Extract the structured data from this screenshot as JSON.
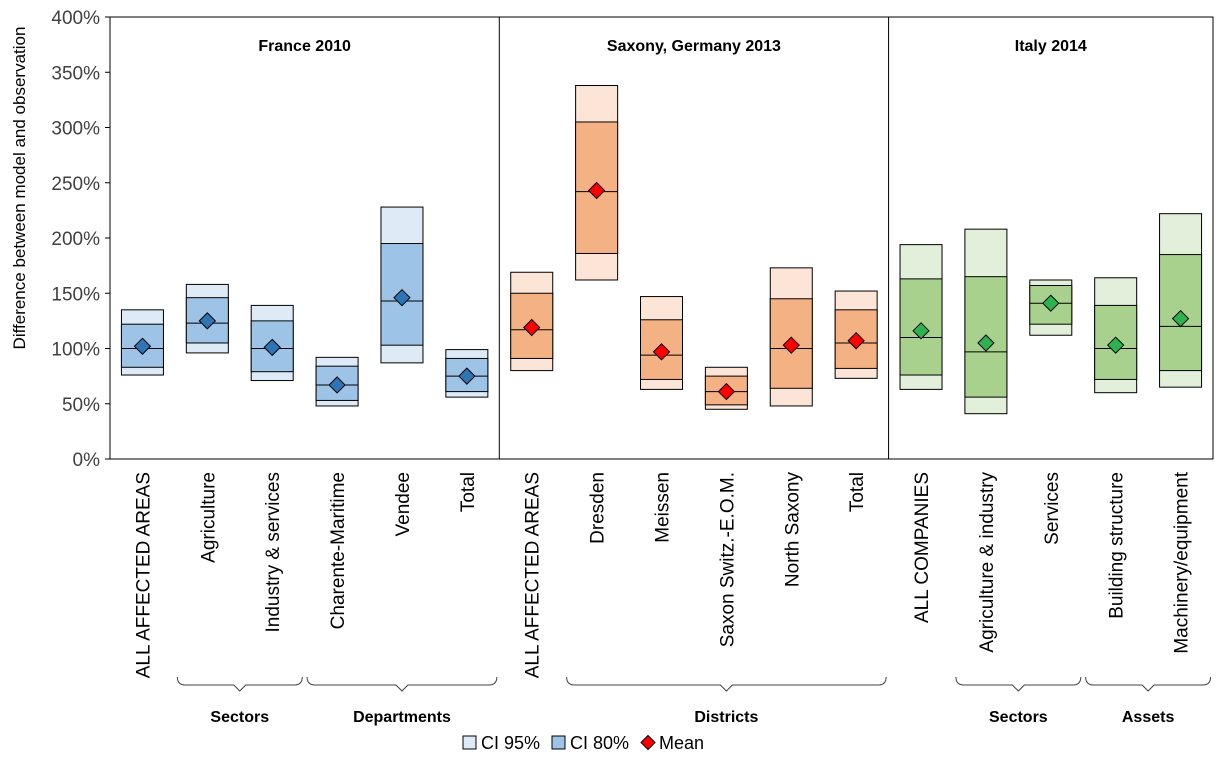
{
  "chart_data": {
    "type": "box",
    "ylabel": "Difference between model and observation",
    "ylim": [
      0,
      400
    ],
    "yticks": [
      "0%",
      "50%",
      "100%",
      "150%",
      "200%",
      "250%",
      "300%",
      "350%",
      "400%"
    ],
    "regions": [
      {
        "name": "France 2010",
        "first": 0,
        "last": 5
      },
      {
        "name": "Saxony, Germany 2013",
        "first": 6,
        "last": 11
      },
      {
        "name": "Italy 2014",
        "first": 12,
        "last": 16
      }
    ],
    "groups": [
      {
        "name": "Sectors",
        "first": 1,
        "last": 2
      },
      {
        "name": "Departments",
        "first": 3,
        "last": 5
      },
      {
        "name": "Districts",
        "first": 7,
        "last": 11
      },
      {
        "name": "Sectors",
        "first": 13,
        "last": 14
      },
      {
        "name": "Assets",
        "first": 15,
        "last": 16
      }
    ],
    "categories": [
      {
        "label": "ALL AFFECTED AREAS",
        "region": 0,
        "ci95": [
          76,
          135
        ],
        "ci80": [
          83,
          122
        ],
        "median": 100,
        "mean": 102
      },
      {
        "label": "Agriculture",
        "region": 0,
        "ci95": [
          96,
          158
        ],
        "ci80": [
          105,
          146
        ],
        "median": 123,
        "mean": 125
      },
      {
        "label": "Industry & services",
        "region": 0,
        "ci95": [
          71,
          139
        ],
        "ci80": [
          79,
          125
        ],
        "median": 100,
        "mean": 101
      },
      {
        "label": "Charente-Maritime",
        "region": 0,
        "ci95": [
          48,
          92
        ],
        "ci80": [
          53,
          84
        ],
        "median": 67,
        "mean": 67
      },
      {
        "label": "Vendee",
        "region": 0,
        "ci95": [
          87,
          228
        ],
        "ci80": [
          103,
          195
        ],
        "median": 143,
        "mean": 146
      },
      {
        "label": "Total",
        "region": 0,
        "ci95": [
          56,
          99
        ],
        "ci80": [
          61,
          91
        ],
        "median": 75,
        "mean": 75
      },
      {
        "label": "ALL AFFECTED AREAS",
        "region": 1,
        "ci95": [
          80,
          169
        ],
        "ci80": [
          91,
          150
        ],
        "median": 117,
        "mean": 119
      },
      {
        "label": "Dresden",
        "region": 1,
        "ci95": [
          162,
          338
        ],
        "ci80": [
          186,
          305
        ],
        "median": 242,
        "mean": 243
      },
      {
        "label": "Meissen",
        "region": 1,
        "ci95": [
          63,
          147
        ],
        "ci80": [
          72,
          126
        ],
        "median": 94,
        "mean": 97
      },
      {
        "label": "Saxon Switz.-E.O.M.",
        "region": 1,
        "ci95": [
          45,
          83
        ],
        "ci80": [
          49,
          75
        ],
        "median": 61,
        "mean": 61
      },
      {
        "label": "North Saxony",
        "region": 1,
        "ci95": [
          48,
          173
        ],
        "ci80": [
          64,
          145
        ],
        "median": 100,
        "mean": 103
      },
      {
        "label": "Total",
        "region": 1,
        "ci95": [
          73,
          152
        ],
        "ci80": [
          82,
          135
        ],
        "median": 105,
        "mean": 107
      },
      {
        "label": "ALL COMPANIES",
        "region": 2,
        "ci95": [
          63,
          194
        ],
        "ci80": [
          76,
          163
        ],
        "median": 110,
        "mean": 116
      },
      {
        "label": "Agriculture & industry",
        "region": 2,
        "ci95": [
          41,
          208
        ],
        "ci80": [
          56,
          165
        ],
        "median": 97,
        "mean": 105
      },
      {
        "label": "Services",
        "region": 2,
        "ci95": [
          112,
          162
        ],
        "ci80": [
          122,
          157
        ],
        "median": 141,
        "mean": 141
      },
      {
        "label": "Building structure",
        "region": 2,
        "ci95": [
          60,
          164
        ],
        "ci80": [
          72,
          139
        ],
        "median": 100,
        "mean": 103
      },
      {
        "label": "Machinery/equipment",
        "region": 2,
        "ci95": [
          65,
          222
        ],
        "ci80": [
          80,
          185
        ],
        "median": 120,
        "mean": 127
      }
    ],
    "colors": {
      "ci95": [
        "#deebf7",
        "#fce4d6",
        "#e2efda"
      ],
      "ci80": [
        "#9dc3e6",
        "#f4b183",
        "#a9d18e"
      ],
      "mean": [
        "#2e75b6",
        "#ff0000",
        "#2eb24f"
      ]
    },
    "legend": {
      "items": [
        {
          "label": "CI 95%",
          "color": "#deebf7"
        },
        {
          "label": "CI 80%",
          "color": "#9dc3e6"
        },
        {
          "label": "Mean",
          "color": "#ff0000"
        }
      ],
      "placement": "bottom"
    },
    "grid": false
  }
}
